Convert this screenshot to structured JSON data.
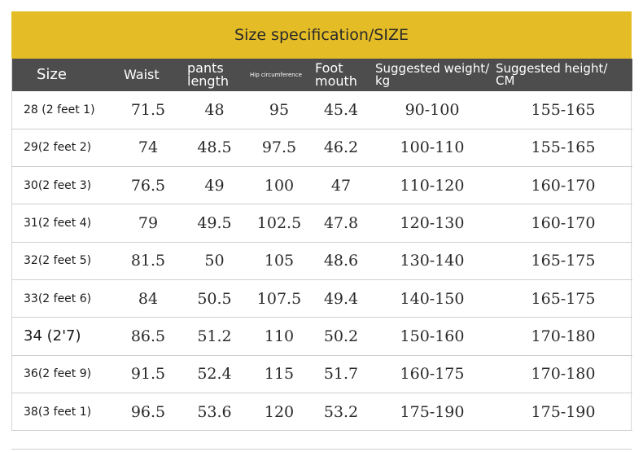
{
  "title": "Size specification/SIZE",
  "headers": {
    "size": "Size",
    "waist": "Waist",
    "pants_length_1": "pants",
    "pants_length_2": "length",
    "hip": "Hip circumference",
    "foot_1": "Foot",
    "foot_2": "mouth",
    "weight_1": "Suggested weight/",
    "weight_2": "kg",
    "height_1": "Suggested height/",
    "height_2": "CM"
  },
  "rows": [
    {
      "size": "28 (2 feet 1)",
      "waist": "71.5",
      "pants_length": "48",
      "hip": "95",
      "foot": "45.4",
      "weight": "90-100",
      "height": "155-165"
    },
    {
      "size": "29(2 feet 2)",
      "waist": "74",
      "pants_length": "48.5",
      "hip": "97.5",
      "foot": "46.2",
      "weight": "100-110",
      "height": "155-165"
    },
    {
      "size": "30(2 feet 3)",
      "waist": "76.5",
      "pants_length": "49",
      "hip": "100",
      "foot": "47",
      "weight": "110-120",
      "height": "160-170"
    },
    {
      "size": "31(2 feet 4)",
      "waist": "79",
      "pants_length": "49.5",
      "hip": "102.5",
      "foot": "47.8",
      "weight": "120-130",
      "height": "160-170"
    },
    {
      "size": "32(2 feet 5)",
      "waist": "81.5",
      "pants_length": "50",
      "hip": "105",
      "foot": "48.6",
      "weight": "130-140",
      "height": "165-175"
    },
    {
      "size": "33(2 feet 6)",
      "waist": "84",
      "pants_length": "50.5",
      "hip": "107.5",
      "foot": "49.4",
      "weight": "140-150",
      "height": "165-175"
    },
    {
      "size": "34 (2'7)",
      "waist": "86.5",
      "pants_length": "51.2",
      "hip": "110",
      "foot": "50.2",
      "weight": "150-160",
      "height": "170-180"
    },
    {
      "size": "36(2 feet 9)",
      "waist": "91.5",
      "pants_length": "52.4",
      "hip": "115",
      "foot": "51.7",
      "weight": "160-175",
      "height": "170-180"
    },
    {
      "size": "38(3 feet 1)",
      "waist": "96.5",
      "pants_length": "53.6",
      "hip": "120",
      "foot": "53.2",
      "weight": "175-190",
      "height": "175-190"
    }
  ],
  "colors": {
    "title_bar": "#e4bc26",
    "header_bar": "#4d4d4d"
  }
}
